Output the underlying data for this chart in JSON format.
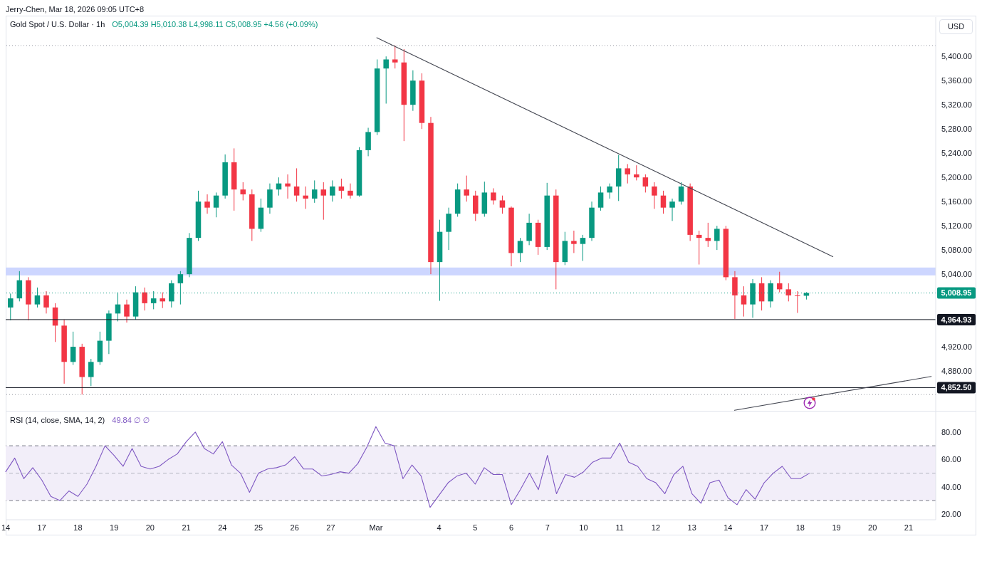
{
  "chart_data": [
    {
      "type": "candlestick",
      "title": "Gold Spot / U.S. Dollar · 1h",
      "subtitle": "O5,004.39 H5,010.38 L4,998.11 C5,008.95 +4.56 (+0.09%)",
      "ylabel": "USD",
      "annotations": [
        "Jerry-Chen, Mar 18, 2026 09:05 UTC+8"
      ],
      "categories": [
        null,
        null,
        null,
        null,
        null,
        null,
        null,
        null,
        null,
        null,
        null,
        null,
        null,
        null,
        null,
        null,
        null,
        null,
        null,
        null,
        null,
        null,
        null,
        null,
        null,
        null,
        null,
        null,
        null,
        null,
        null,
        null,
        null,
        null,
        null,
        null,
        null,
        null,
        null,
        null,
        null,
        null,
        null,
        null,
        null,
        null,
        null,
        null,
        null,
        null,
        null,
        null,
        null,
        null,
        null,
        null,
        null,
        null,
        null,
        null,
        null,
        null,
        null,
        null,
        null,
        null,
        null,
        null,
        null,
        null,
        null,
        null,
        null,
        null,
        null,
        null,
        null,
        null,
        null,
        null,
        null,
        null,
        null,
        null,
        null,
        null,
        null,
        null,
        null,
        null,
        null,
        null,
        null,
        null,
        null,
        null,
        null,
        null,
        null,
        null,
        null,
        null,
        null,
        null
      ],
      "ohlc": [
        [
          4985,
          5008,
          4964,
          5000
        ],
        [
          5000,
          5045,
          4995,
          5030
        ],
        [
          5030,
          5035,
          4964,
          4990
        ],
        [
          4990,
          5018,
          4985,
          5005
        ],
        [
          5005,
          5012,
          4975,
          4985
        ],
        [
          4985,
          4992,
          4928,
          4955
        ],
        [
          4955,
          4965,
          4859,
          4895
        ],
        [
          4895,
          4945,
          4890,
          4920
        ],
        [
          4920,
          4925,
          4841,
          4870
        ],
        [
          4870,
          4900,
          4855,
          4895
        ],
        [
          4895,
          4945,
          4890,
          4930
        ],
        [
          4930,
          4980,
          4908,
          4975
        ],
        [
          4975,
          5010,
          4962,
          4990
        ],
        [
          4990,
          4998,
          4960,
          4970
        ],
        [
          4970,
          5020,
          4965,
          5010
        ],
        [
          5010,
          5018,
          4980,
          4992
        ],
        [
          4992,
          5012,
          4982,
          5000
        ],
        [
          5000,
          5010,
          4984,
          4995
        ],
        [
          4995,
          5030,
          4985,
          5025
        ],
        [
          5025,
          5045,
          4990,
          5040
        ],
        [
          5040,
          5108,
          5035,
          5100
        ],
        [
          5100,
          5178,
          5095,
          5160
        ],
        [
          5160,
          5172,
          5140,
          5150
        ],
        [
          5150,
          5175,
          5134,
          5170
        ],
        [
          5170,
          5238,
          5165,
          5225
        ],
        [
          5225,
          5248,
          5145,
          5180
        ],
        [
          5180,
          5192,
          5162,
          5172
        ],
        [
          5172,
          5180,
          5095,
          5115
        ],
        [
          5115,
          5165,
          5110,
          5150
        ],
        [
          5150,
          5190,
          5140,
          5180
        ],
        [
          5180,
          5200,
          5170,
          5190
        ],
        [
          5190,
          5205,
          5165,
          5185
        ],
        [
          5185,
          5215,
          5160,
          5170
        ],
        [
          5170,
          5185,
          5148,
          5165
        ],
        [
          5165,
          5195,
          5158,
          5180
        ],
        [
          5180,
          5192,
          5130,
          5170
        ],
        [
          5170,
          5195,
          5160,
          5185
        ],
        [
          5185,
          5198,
          5165,
          5178
        ],
        [
          5178,
          5190,
          5165,
          5170
        ],
        [
          5170,
          5250,
          5168,
          5245
        ],
        [
          5245,
          5282,
          5235,
          5275
        ],
        [
          5275,
          5395,
          5270,
          5380
        ],
        [
          5380,
          5400,
          5322,
          5395
        ],
        [
          5395,
          5418,
          5380,
          5390
        ],
        [
          5390,
          5412,
          5260,
          5320
        ],
        [
          5320,
          5377,
          5310,
          5360
        ],
        [
          5360,
          5372,
          5280,
          5290
        ],
        [
          5290,
          5300,
          5040,
          5060
        ],
        [
          5060,
          5130,
          4996,
          5110
        ],
        [
          5110,
          5150,
          5080,
          5140
        ],
        [
          5140,
          5190,
          5135,
          5180
        ],
        [
          5180,
          5203,
          5160,
          5170
        ],
        [
          5170,
          5178,
          5128,
          5140
        ],
        [
          5140,
          5193,
          5135,
          5175
        ],
        [
          5175,
          5182,
          5155,
          5162
        ],
        [
          5162,
          5170,
          5140,
          5150
        ],
        [
          5150,
          5152,
          5053,
          5075
        ],
        [
          5075,
          5100,
          5060,
          5095
        ],
        [
          5095,
          5140,
          5088,
          5125
        ],
        [
          5125,
          5130,
          5072,
          5085
        ],
        [
          5085,
          5191,
          5080,
          5170
        ],
        [
          5170,
          5180,
          5015,
          5060
        ],
        [
          5060,
          5110,
          5055,
          5095
        ],
        [
          5095,
          5112,
          5075,
          5090
        ],
        [
          5090,
          5105,
          5062,
          5100
        ],
        [
          5100,
          5160,
          5095,
          5150
        ],
        [
          5150,
          5185,
          5145,
          5175
        ],
        [
          5175,
          5190,
          5165,
          5185
        ],
        [
          5185,
          5237,
          5161,
          5215
        ],
        [
          5215,
          5222,
          5190,
          5205
        ],
        [
          5205,
          5220,
          5195,
          5200
        ],
        [
          5200,
          5205,
          5175,
          5185
        ],
        [
          5185,
          5192,
          5148,
          5170
        ],
        [
          5170,
          5178,
          5140,
          5150
        ],
        [
          5150,
          5165,
          5128,
          5160
        ],
        [
          5160,
          5192,
          5155,
          5185
        ],
        [
          5185,
          5190,
          5095,
          5105
        ],
        [
          5105,
          5112,
          5056,
          5100
        ],
        [
          5100,
          5125,
          5085,
          5095
        ],
        [
          5095,
          5120,
          5080,
          5115
        ],
        [
          5115,
          5120,
          5030,
          5035
        ],
        [
          5035,
          5045,
          4966,
          5005
        ],
        [
          5005,
          5020,
          4970,
          4990
        ],
        [
          4990,
          5032,
          4968,
          5025
        ],
        [
          5025,
          5035,
          4980,
          4995
        ],
        [
          4995,
          5030,
          4985,
          5025
        ],
        [
          5025,
          5044,
          5010,
          5015
        ],
        [
          5015,
          5025,
          4995,
          5005
        ],
        [
          5005,
          5012,
          4976,
          5004
        ],
        [
          5004.39,
          5010.38,
          4998.11,
          5008.95
        ],
        null,
        null,
        null,
        null,
        null,
        null,
        null,
        null,
        null,
        null,
        null,
        null,
        null,
        null
      ],
      "colors": [
        "#089981",
        "#089981",
        "#f23645",
        "#089981",
        "#f23645",
        "#f23645",
        "#f23645",
        "#089981",
        "#f23645",
        "#089981",
        "#089981",
        "#089981",
        "#089981",
        "#f23645",
        "#089981",
        "#f23645",
        "#089981",
        "#f23645",
        "#089981",
        "#089981",
        "#089981",
        "#089981",
        "#f23645",
        "#089981",
        "#089981",
        "#f23645",
        "#f23645",
        "#f23645",
        "#089981",
        "#089981",
        "#089981",
        "#f23645",
        "#f23645",
        "#f23645",
        "#089981",
        "#f23645",
        "#089981",
        "#f23645",
        "#f23645",
        "#089981",
        "#089981",
        "#089981",
        "#089981",
        "#f23645",
        "#f23645",
        "#089981",
        "#f23645",
        "#f23645",
        "#089981",
        "#089981",
        "#089981",
        "#f23645",
        "#f23645",
        "#089981",
        "#f23645",
        "#f23645",
        "#f23645",
        "#089981",
        "#089981",
        "#f23645",
        "#089981",
        "#f23645",
        "#089981",
        "#f23645",
        "#089981",
        "#089981",
        "#089981",
        "#089981",
        "#089981",
        "#f23645",
        "#f23645",
        "#f23645",
        "#f23645",
        "#f23645",
        "#089981",
        "#089981",
        "#f23645",
        "#f23645",
        "#f23645",
        "#089981",
        "#f23645",
        "#f23645",
        "#f23645",
        "#089981",
        "#f23645",
        "#089981",
        "#f23645",
        "#f23645",
        "#f23645",
        "#089981",
        null,
        null,
        null,
        null,
        null,
        null,
        null,
        null,
        null,
        null,
        null,
        null,
        null,
        null
      ],
      "series": [
        {
          "type": "line",
          "color": "#434651",
          "values": [
            null,
            null,
            null,
            null,
            null,
            null,
            null,
            null,
            null,
            null,
            null,
            null,
            null,
            null,
            null,
            null,
            null,
            null,
            null,
            null,
            null,
            null,
            null,
            null,
            null,
            null,
            null,
            null,
            null,
            null,
            null,
            null,
            null,
            null,
            null,
            null,
            null,
            null,
            null,
            null,
            null,
            5431,
            null,
            null,
            null,
            null,
            null,
            null,
            null,
            null,
            null,
            null,
            null,
            null,
            null,
            null,
            null,
            null,
            null,
            null,
            null,
            null,
            null,
            null,
            null,
            null,
            null,
            null,
            null,
            null,
            null,
            null,
            null,
            null,
            null,
            null,
            null,
            null,
            null,
            null,
            null,
            null,
            null,
            null,
            null,
            null,
            null,
            null,
            null,
            null,
            null,
            null,
            5069,
            null,
            null,
            null,
            null,
            null,
            null,
            null,
            null,
            null,
            null,
            null
          ]
        },
        {
          "type": "line",
          "color": "#434651",
          "values": [
            null,
            null,
            null,
            null,
            null,
            null,
            null,
            null,
            null,
            null,
            null,
            null,
            null,
            null,
            null,
            null,
            null,
            null,
            null,
            null,
            null,
            null,
            null,
            null,
            null,
            null,
            null,
            null,
            null,
            null,
            null,
            null,
            null,
            null,
            null,
            null,
            null,
            null,
            null,
            null,
            null,
            null,
            null,
            null,
            null,
            null,
            null,
            null,
            null,
            null,
            null,
            null,
            null,
            null,
            null,
            null,
            null,
            null,
            null,
            null,
            null,
            null,
            null,
            null,
            null,
            null,
            null,
            null,
            null,
            null,
            null,
            null,
            null,
            null,
            null,
            null,
            null,
            null,
            null,
            null,
            null,
            4815,
            null,
            null,
            null,
            null,
            null,
            null,
            null,
            null,
            null,
            null,
            null,
            null,
            null,
            null,
            null,
            null,
            null,
            null,
            null,
            null,
            null,
            4871
          ]
        }
      ],
      "ylim": [
        4813,
        5465
      ],
      "yticks": [
        {
          "value": 5400,
          "label": "5,400.00"
        },
        {
          "value": 5360,
          "label": "5,360.00"
        },
        {
          "value": 5320,
          "label": "5,320.00"
        },
        {
          "value": 5280,
          "label": "5,280.00"
        },
        {
          "value": 5240,
          "label": "5,240.00"
        },
        {
          "value": 5200,
          "label": "5,200.00"
        },
        {
          "value": 5160,
          "label": "5,160.00"
        },
        {
          "value": 5120,
          "label": "5,120.00"
        },
        {
          "value": 5080,
          "label": "5,080.00"
        },
        {
          "value": 5040,
          "label": "5,040.00"
        },
        {
          "value": 4920,
          "label": "4,920.00"
        },
        {
          "value": 4880,
          "label": "4,880.00"
        }
      ],
      "tick_labels": "y",
      "ref_lines": [
        {
          "axis": "y",
          "value": 5418,
          "color": "#9598a1",
          "line_style": "dotted"
        },
        {
          "axis": "y",
          "value": 4841,
          "color": "#9598a1",
          "line_style": "dotted"
        },
        {
          "axis": "y",
          "value": 5008.95,
          "label": "5,008.95",
          "color": "#089981",
          "line_style": "dotted"
        },
        {
          "axis": "y",
          "value": 4964.93,
          "label": "4,964.93",
          "color": "#131722"
        },
        {
          "axis": "y",
          "value": 4852.5,
          "label": "4,852.50",
          "color": "#131722"
        }
      ],
      "bands": [
        {
          "axis": "y",
          "from": 5038,
          "to": 5051,
          "color": "#cdd6ff"
        }
      ]
    },
    {
      "type": "line",
      "title": "RSI (14, close, SMA, 14, 2)",
      "subtitle": "49.84 ∅ ∅",
      "color": "#7e57c2",
      "categories": [
        "14",
        null,
        null,
        null,
        "17",
        null,
        null,
        null,
        "18",
        null,
        null,
        null,
        "19",
        null,
        null,
        null,
        "20",
        null,
        null,
        null,
        "21",
        null,
        null,
        null,
        "24",
        null,
        null,
        null,
        "25",
        null,
        null,
        null,
        "26",
        null,
        null,
        null,
        "27",
        null,
        null,
        null,
        null,
        "Mar",
        null,
        null,
        null,
        null,
        null,
        null,
        "4",
        null,
        null,
        null,
        "5",
        null,
        null,
        null,
        "6",
        null,
        null,
        null,
        "7",
        null,
        null,
        null,
        "10",
        null,
        null,
        null,
        "11",
        null,
        null,
        null,
        "12",
        null,
        null,
        null,
        "13",
        null,
        null,
        null,
        "14",
        null,
        null,
        null,
        "17",
        null,
        null,
        null,
        "18",
        null,
        null,
        null,
        "19",
        null,
        null,
        null,
        "20",
        null,
        null,
        null,
        "21",
        null,
        null,
        null
      ],
      "values": [
        51,
        61,
        46,
        54,
        45,
        33,
        30,
        37,
        33,
        42,
        55,
        70,
        63,
        55,
        68,
        55,
        53,
        55,
        60,
        64,
        73,
        80,
        68,
        64,
        73,
        56,
        50,
        36,
        50,
        53,
        54,
        56,
        62,
        53,
        53,
        48,
        49,
        51,
        50,
        57,
        69,
        84,
        72,
        70,
        46,
        56,
        48,
        25,
        34,
        43,
        48,
        50,
        42,
        54,
        49,
        49,
        27,
        38,
        50,
        38,
        63,
        35,
        49,
        47,
        51,
        58,
        61,
        61,
        72,
        58,
        55,
        46,
        43,
        35,
        49,
        55,
        35,
        28,
        43,
        45,
        32,
        27,
        38,
        31,
        43,
        50,
        55,
        46,
        46,
        49.84,
        null,
        null,
        null,
        null,
        null,
        null,
        null,
        null,
        null,
        null,
        null,
        null,
        null,
        null
      ],
      "ylim": [
        16,
        95
      ],
      "yticks": [
        {
          "value": 80,
          "label": "80.00"
        },
        {
          "value": 60,
          "label": "60.00"
        },
        {
          "value": 40,
          "label": "40.00"
        },
        {
          "value": 20,
          "label": "20.00"
        }
      ],
      "ref_lines": [
        {
          "axis": "y",
          "value": 70,
          "color": "#787b86",
          "line_style": "dashed"
        },
        {
          "axis": "y",
          "value": 50,
          "color": "#b2b5be",
          "line_style": "dashed"
        },
        {
          "axis": "y",
          "value": 30,
          "color": "#787b86",
          "line_style": "dashed"
        }
      ],
      "bands": [
        {
          "axis": "y",
          "from": 30,
          "to": 70,
          "color": "#f2eef9"
        }
      ]
    }
  ]
}
